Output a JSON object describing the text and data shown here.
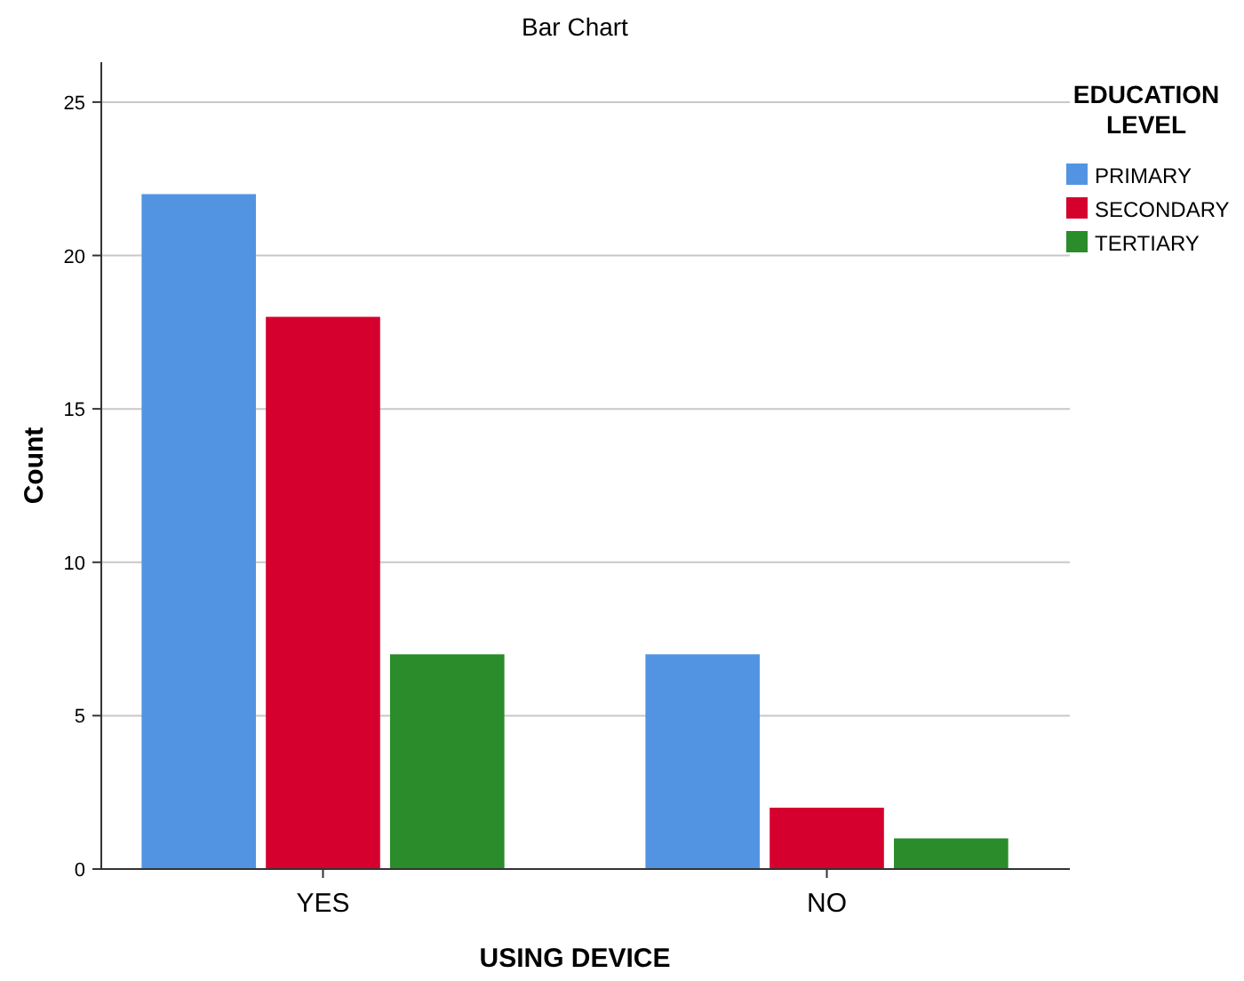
{
  "chart_data": {
    "type": "bar",
    "title": "Bar Chart",
    "xlabel": "USING DEVICE",
    "ylabel": "Count",
    "legend_title": "EDUCATION LEVEL",
    "categories": [
      "YES",
      "NO"
    ],
    "series": [
      {
        "name": "PRIMARY",
        "color": "#5294e2",
        "values": [
          22,
          7
        ]
      },
      {
        "name": "SECONDARY",
        "color": "#d6002f",
        "values": [
          18,
          2
        ]
      },
      {
        "name": "TERTIARY",
        "color": "#2a8c2a",
        "values": [
          7,
          1
        ]
      }
    ],
    "ylim": [
      0,
      26.3
    ],
    "yticks": [
      0,
      5,
      10,
      15,
      20,
      25
    ],
    "grid": "y",
    "legend": "right"
  }
}
